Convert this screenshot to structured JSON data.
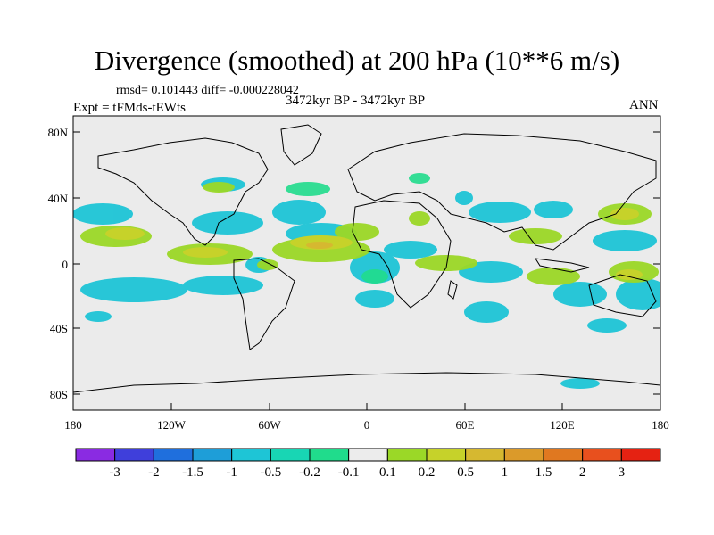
{
  "title": "Divergence (smoothed) at 200 hPa (10**6 m/s)",
  "stats": "rmsd= 0.101443  diff= -0.000228042",
  "period": "3472kyr BP - 3472kyr BP",
  "experiment": "Expt = tFMds-tEWts",
  "season": "ANN",
  "map": {
    "y_tick_labels": [
      "80N",
      "40N",
      "0",
      "40S",
      "80S"
    ],
    "x_tick_labels": [
      "180",
      "120W",
      "60W",
      "0",
      "60E",
      "120E",
      "180"
    ]
  },
  "colorbar": {
    "colors": [
      "#8a2be2",
      "#3f3fdb",
      "#1f6fdd",
      "#1e9ed8",
      "#1ec5d6",
      "#18d6b4",
      "#20dc8c",
      "#ececec",
      "#9bd827",
      "#c6d22a",
      "#d6b830",
      "#db9a2a",
      "#e07820",
      "#e8501e",
      "#e52212"
    ],
    "labels": [
      "-3",
      "-2",
      "-1.5",
      "-1",
      "-0.5",
      "-0.2",
      "-0.1",
      "0.1",
      "0.2",
      "0.5",
      "1",
      "1.5",
      "2",
      "3"
    ]
  }
}
